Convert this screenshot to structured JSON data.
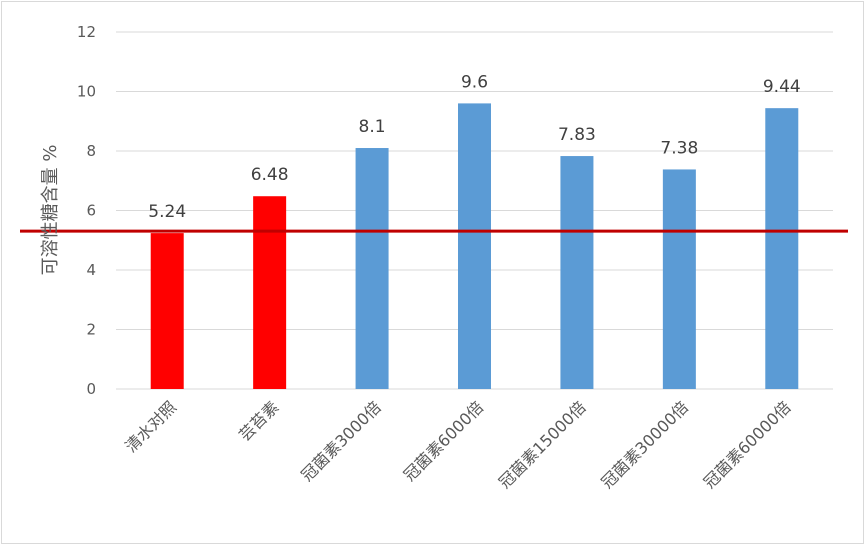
{
  "chart_data": {
    "type": "bar",
    "title": "",
    "xlabel": "",
    "ylabel": "可溶性糖含量 %",
    "ylim": [
      0,
      12
    ],
    "yticks": [
      0,
      2,
      4,
      6,
      8,
      10,
      12
    ],
    "grid": true,
    "categories": [
      "清水对照",
      "芸苔素",
      "冠菌素3000倍",
      "冠菌素6000倍",
      "冠菌素15000倍",
      "冠菌素30000倍",
      "冠菌素60000倍"
    ],
    "values": [
      5.24,
      6.48,
      8.1,
      9.6,
      7.83,
      7.38,
      9.44
    ],
    "data_labels": [
      "5.24",
      "6.48",
      "8.1",
      "9.6",
      "7.83",
      "7.38",
      "9.44"
    ],
    "bar_colors": [
      "#ff0000",
      "#ff0000",
      "#5b9bd5",
      "#5b9bd5",
      "#5b9bd5",
      "#5b9bd5",
      "#5b9bd5"
    ],
    "reference_line": {
      "value": 5.24,
      "color": "#c00000"
    },
    "gridline_color": "#d9d9d9"
  }
}
